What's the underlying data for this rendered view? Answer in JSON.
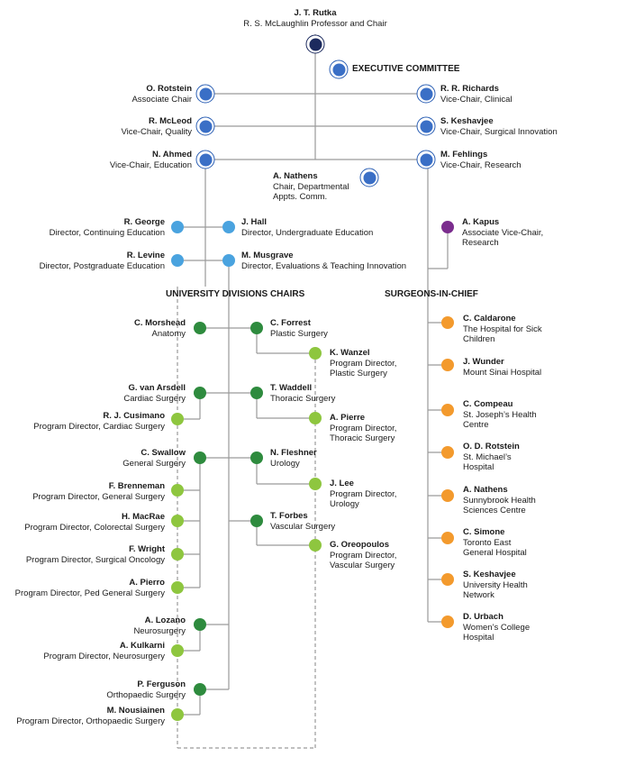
{
  "colors": {
    "chair": "#1c2a5e",
    "executive": "#3a6fc6",
    "education": "#4aa3df",
    "research": "#7b2d8e",
    "division_chair": "#2e8b3e",
    "program_director": "#8ec63f",
    "surgeon_in_chief": "#f39a2d",
    "line": "#9a9a9a"
  },
  "chair": {
    "name": "J. T. Rutka",
    "role": "R. S. McLaughlin Professor and Chair"
  },
  "executive_committee": {
    "title": "EXECUTIVE COMMITTEE"
  },
  "executive": {
    "rotstein": {
      "name": "O. Rotstein",
      "role": "Associate Chair"
    },
    "richards": {
      "name": "R. R. Richards",
      "role": "Vice-Chair, Clinical"
    },
    "mcleod": {
      "name": "R. McLeod",
      "role": "Vice-Chair, Quality"
    },
    "keshavjee": {
      "name": "S. Keshavjee",
      "role": "Vice-Chair, Surgical Innovation"
    },
    "ahmed": {
      "name": "N. Ahmed",
      "role": "Vice-Chair, Education"
    },
    "fehlings": {
      "name": "M. Fehlings",
      "role": "Vice-Chair, Research"
    },
    "nathens": {
      "name": "A. Nathens",
      "role1": "Chair, Departmental",
      "role2": "Appts. Comm."
    }
  },
  "education": {
    "george": {
      "name": "R. George",
      "role": "Director, Continuing Education"
    },
    "hall": {
      "name": "J. Hall",
      "role": "Director, Undergraduate Education"
    },
    "levine": {
      "name": "R. Levine",
      "role": "Director, Postgraduate Education"
    },
    "musgrave": {
      "name": "M. Musgrave",
      "role": "Director, Evaluations & Teaching Innovation"
    }
  },
  "research": {
    "kapus": {
      "name": "A. Kapus",
      "role1": "Associate Vice-Chair,",
      "role2": "Research"
    }
  },
  "headings": {
    "divisions": "UNIVERSITY DIVISIONS CHAIRS",
    "surgeons": "SURGEONS-IN-CHIEF"
  },
  "divisions": {
    "morshead": {
      "name": "C. Morshead",
      "role": "Anatomy"
    },
    "forrest": {
      "name": "C. Forrest",
      "role": "Plastic Surgery"
    },
    "wanzel": {
      "name": "K. Wanzel",
      "role1": "Program Director,",
      "role2": "Plastic Surgery"
    },
    "vanarsdell": {
      "name": "G. van Arsdell",
      "role": "Cardiac Surgery"
    },
    "waddell": {
      "name": "T. Waddell",
      "role": "Thoracic Surgery"
    },
    "cusimano": {
      "name": "R. J. Cusimano",
      "role": "Program Director, Cardiac Surgery"
    },
    "pierre": {
      "name": "A. Pierre",
      "role1": "Program Director,",
      "role2": "Thoracic Surgery"
    },
    "swallow": {
      "name": "C. Swallow",
      "role": "General Surgery"
    },
    "fleshner": {
      "name": "N. Fleshner",
      "role": "Urology"
    },
    "brenneman": {
      "name": "F. Brenneman",
      "role": "Program Director, General Surgery"
    },
    "lee": {
      "name": "J. Lee",
      "role1": "Program Director,",
      "role2": "Urology"
    },
    "macrae": {
      "name": "H. MacRae",
      "role": "Program Director, Colorectal Surgery"
    },
    "forbes": {
      "name": "T. Forbes",
      "role": "Vascular Surgery"
    },
    "wright": {
      "name": "F. Wright",
      "role": "Program Director, Surgical Oncology"
    },
    "oreopoulos": {
      "name": "G. Oreopoulos",
      "role1": "Program Director,",
      "role2": "Vascular Surgery"
    },
    "pierro": {
      "name": "A. Pierro",
      "role": "Program Director, Ped General Surgery"
    },
    "lozano": {
      "name": "A. Lozano",
      "role": "Neurosurgery"
    },
    "kulkarni": {
      "name": "A. Kulkarni",
      "role": "Program Director, Neurosurgery"
    },
    "ferguson": {
      "name": "P. Ferguson",
      "role": "Orthopaedic Surgery"
    },
    "nousiainen": {
      "name": "M. Nousiainen",
      "role": "Program Director, Orthopaedic Surgery"
    }
  },
  "surgeons": {
    "caldarone": {
      "name": "C. Caldarone",
      "role1": "The Hospital for Sick",
      "role2": "Children"
    },
    "wunder": {
      "name": "J. Wunder",
      "role1": "Mount Sinai Hospital",
      "role2": ""
    },
    "compeau": {
      "name": "C. Compeau",
      "role1": "St. Joseph’s Health",
      "role2": "Centre"
    },
    "rotstein2": {
      "name": "O. D. Rotstein",
      "role1": "St. Michael’s",
      "role2": "Hospital"
    },
    "nathens2": {
      "name": "A. Nathens",
      "role1": "Sunnybrook Health",
      "role2": "Sciences Centre"
    },
    "simone": {
      "name": "C. Simone",
      "role1": "Toronto East",
      "role2": "General Hospital"
    },
    "keshavjee2": {
      "name": "S. Keshavjee",
      "role1": "University Health",
      "role2": "Network"
    },
    "urbach": {
      "name": "D. Urbach",
      "role1": "Women’s College",
      "role2": "Hospital"
    }
  }
}
